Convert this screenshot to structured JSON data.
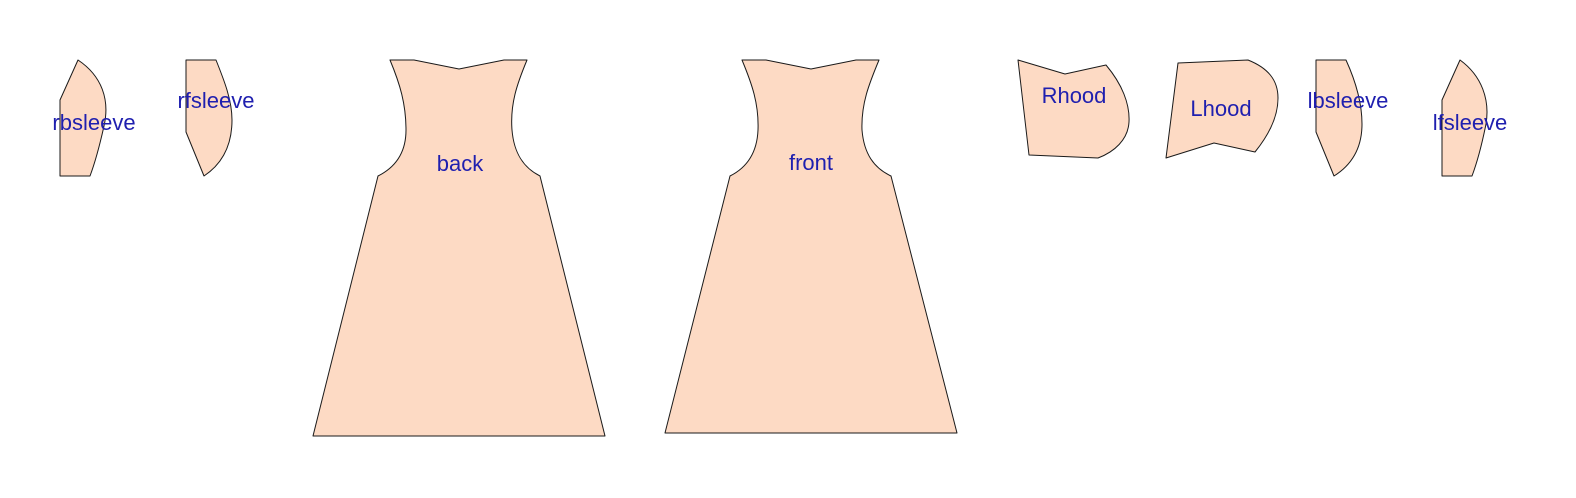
{
  "colors": {
    "piece_fill": "#FDDAC4",
    "label_text": "#1F1FAF",
    "background": "#FFFFFF",
    "outline": "#1A1A1A"
  },
  "pieces": [
    {
      "id": "rbsleeve",
      "label": "rbsleeve"
    },
    {
      "id": "rfsleeve",
      "label": "rfsleeve"
    },
    {
      "id": "back",
      "label": "back"
    },
    {
      "id": "front",
      "label": "front"
    },
    {
      "id": "Rhood",
      "label": "Rhood"
    },
    {
      "id": "Lhood",
      "label": "Lhood"
    },
    {
      "id": "lbsleeve",
      "label": "lbsleeve"
    },
    {
      "id": "lfsleeve",
      "label": "lfsleeve"
    }
  ]
}
